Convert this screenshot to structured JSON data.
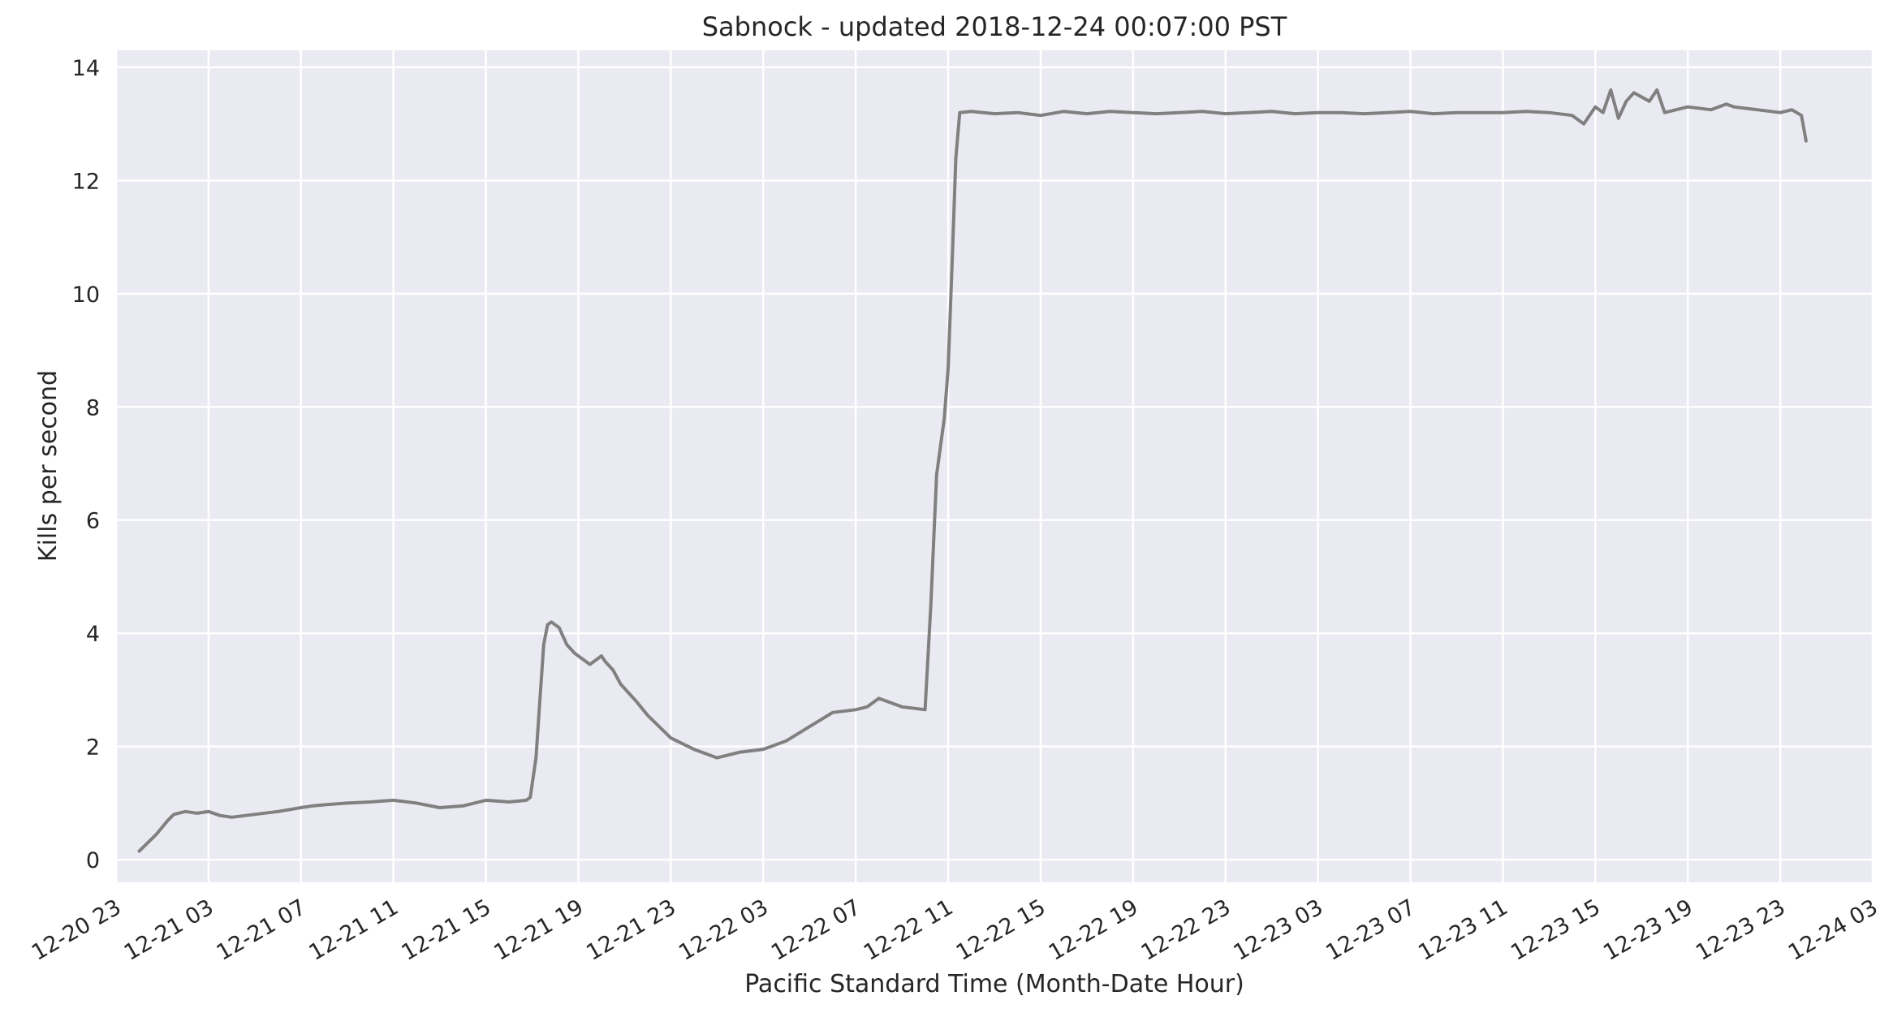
{
  "chart_data": {
    "type": "line",
    "title": "Sabnock - updated 2018-12-24 00:07:00 PST",
    "xlabel": "Pacific Standard Time (Month-Date Hour)",
    "ylabel": "Kills per second",
    "ylim": [
      -0.4,
      14.3
    ],
    "xlim": [
      "2018-12-20 23:00",
      "2018-12-24 03:00"
    ],
    "x_tick_labels": [
      "12-20 23",
      "12-21 03",
      "12-21 07",
      "12-21 11",
      "12-21 15",
      "12-21 19",
      "12-21 23",
      "12-22 03",
      "12-22 07",
      "12-22 11",
      "12-22 15",
      "12-22 19",
      "12-22 23",
      "12-23 03",
      "12-23 07",
      "12-23 11",
      "12-23 15",
      "12-23 19",
      "12-23 23",
      "12-24 03"
    ],
    "y_ticks": [
      0,
      2,
      4,
      6,
      8,
      10,
      12,
      14
    ],
    "grid": true,
    "background": "#EAEAF2",
    "grid_color": "#FFFFFF",
    "line_color": "#808080",
    "series": [
      {
        "x": [
          "2018-12-21 00:00",
          "2018-12-21 00:45",
          "2018-12-21 01:15",
          "2018-12-21 01:30",
          "2018-12-21 02:00",
          "2018-12-21 02:30",
          "2018-12-21 03:00",
          "2018-12-21 03:30",
          "2018-12-21 04:00",
          "2018-12-21 05:00",
          "2018-12-21 06:00",
          "2018-12-21 07:00",
          "2018-12-21 07:30",
          "2018-12-21 08:00",
          "2018-12-21 09:00",
          "2018-12-21 10:00",
          "2018-12-21 11:00",
          "2018-12-21 12:00",
          "2018-12-21 13:00",
          "2018-12-21 14:00",
          "2018-12-21 14:30",
          "2018-12-21 15:00",
          "2018-12-21 16:00",
          "2018-12-21 16:45",
          "2018-12-21 16:55",
          "2018-12-21 17:10",
          "2018-12-21 17:20",
          "2018-12-21 17:30",
          "2018-12-21 17:40",
          "2018-12-21 17:50",
          "2018-12-21 18:10",
          "2018-12-21 18:30",
          "2018-12-21 18:50",
          "2018-12-21 19:10",
          "2018-12-21 19:30",
          "2018-12-21 20:00",
          "2018-12-21 20:10",
          "2018-12-21 20:30",
          "2018-12-21 20:50",
          "2018-12-21 21:30",
          "2018-12-21 22:00",
          "2018-12-21 23:00",
          "2018-12-22 00:00",
          "2018-12-22 01:00",
          "2018-12-22 02:00",
          "2018-12-22 03:00",
          "2018-12-22 04:00",
          "2018-12-22 05:00",
          "2018-12-22 06:00",
          "2018-12-22 07:00",
          "2018-12-22 07:30",
          "2018-12-22 08:00",
          "2018-12-22 09:00",
          "2018-12-22 10:00",
          "2018-12-22 10:15",
          "2018-12-22 10:30",
          "2018-12-22 10:50",
          "2018-12-22 11:00",
          "2018-12-22 11:10",
          "2018-12-22 11:20",
          "2018-12-22 11:30",
          "2018-12-22 12:00",
          "2018-12-22 13:00",
          "2018-12-22 14:00",
          "2018-12-22 15:00",
          "2018-12-22 16:00",
          "2018-12-22 17:00",
          "2018-12-22 18:00",
          "2018-12-22 19:00",
          "2018-12-22 20:00",
          "2018-12-22 21:00",
          "2018-12-22 22:00",
          "2018-12-22 23:00",
          "2018-12-23 00:00",
          "2018-12-23 01:00",
          "2018-12-23 02:00",
          "2018-12-23 03:00",
          "2018-12-23 04:00",
          "2018-12-23 05:00",
          "2018-12-23 06:00",
          "2018-12-23 07:00",
          "2018-12-23 08:00",
          "2018-12-23 09:00",
          "2018-12-23 10:00",
          "2018-12-23 11:00",
          "2018-12-23 12:00",
          "2018-12-23 13:00",
          "2018-12-23 14:00",
          "2018-12-23 14:30",
          "2018-12-23 15:00",
          "2018-12-23 15:20",
          "2018-12-23 15:40",
          "2018-12-23 16:00",
          "2018-12-23 16:20",
          "2018-12-23 16:40",
          "2018-12-23 17:20",
          "2018-12-23 17:40",
          "2018-12-23 18:00",
          "2018-12-23 19:00",
          "2018-12-23 20:00",
          "2018-12-23 20:40",
          "2018-12-23 21:00",
          "2018-12-23 22:00",
          "2018-12-23 23:00",
          "2018-12-23 23:30",
          "2018-12-23 23:55",
          "2018-12-24 00:07"
        ],
        "values": [
          0.15,
          0.45,
          0.7,
          0.8,
          0.85,
          0.82,
          0.85,
          0.78,
          0.75,
          0.8,
          0.85,
          0.92,
          0.95,
          0.97,
          1.0,
          1.02,
          1.05,
          1.0,
          0.92,
          0.95,
          1.0,
          1.05,
          1.02,
          1.05,
          1.1,
          1.8,
          2.8,
          3.8,
          4.15,
          4.2,
          4.1,
          3.8,
          3.65,
          3.55,
          3.45,
          3.6,
          3.5,
          3.35,
          3.1,
          2.8,
          2.55,
          2.15,
          1.95,
          1.8,
          1.9,
          1.95,
          2.1,
          2.35,
          2.6,
          2.65,
          2.7,
          2.85,
          2.7,
          2.65,
          4.5,
          6.8,
          7.8,
          8.7,
          10.5,
          12.4,
          13.2,
          13.22,
          13.18,
          13.2,
          13.15,
          13.22,
          13.18,
          13.22,
          13.2,
          13.18,
          13.2,
          13.22,
          13.18,
          13.2,
          13.22,
          13.18,
          13.2,
          13.2,
          13.18,
          13.2,
          13.22,
          13.18,
          13.2,
          13.2,
          13.2,
          13.22,
          13.2,
          13.15,
          13.0,
          13.3,
          13.2,
          13.6,
          13.1,
          13.4,
          13.55,
          13.4,
          13.6,
          13.2,
          13.3,
          13.25,
          13.35,
          13.3,
          13.25,
          13.2,
          13.25,
          13.15,
          12.7
        ]
      }
    ]
  }
}
